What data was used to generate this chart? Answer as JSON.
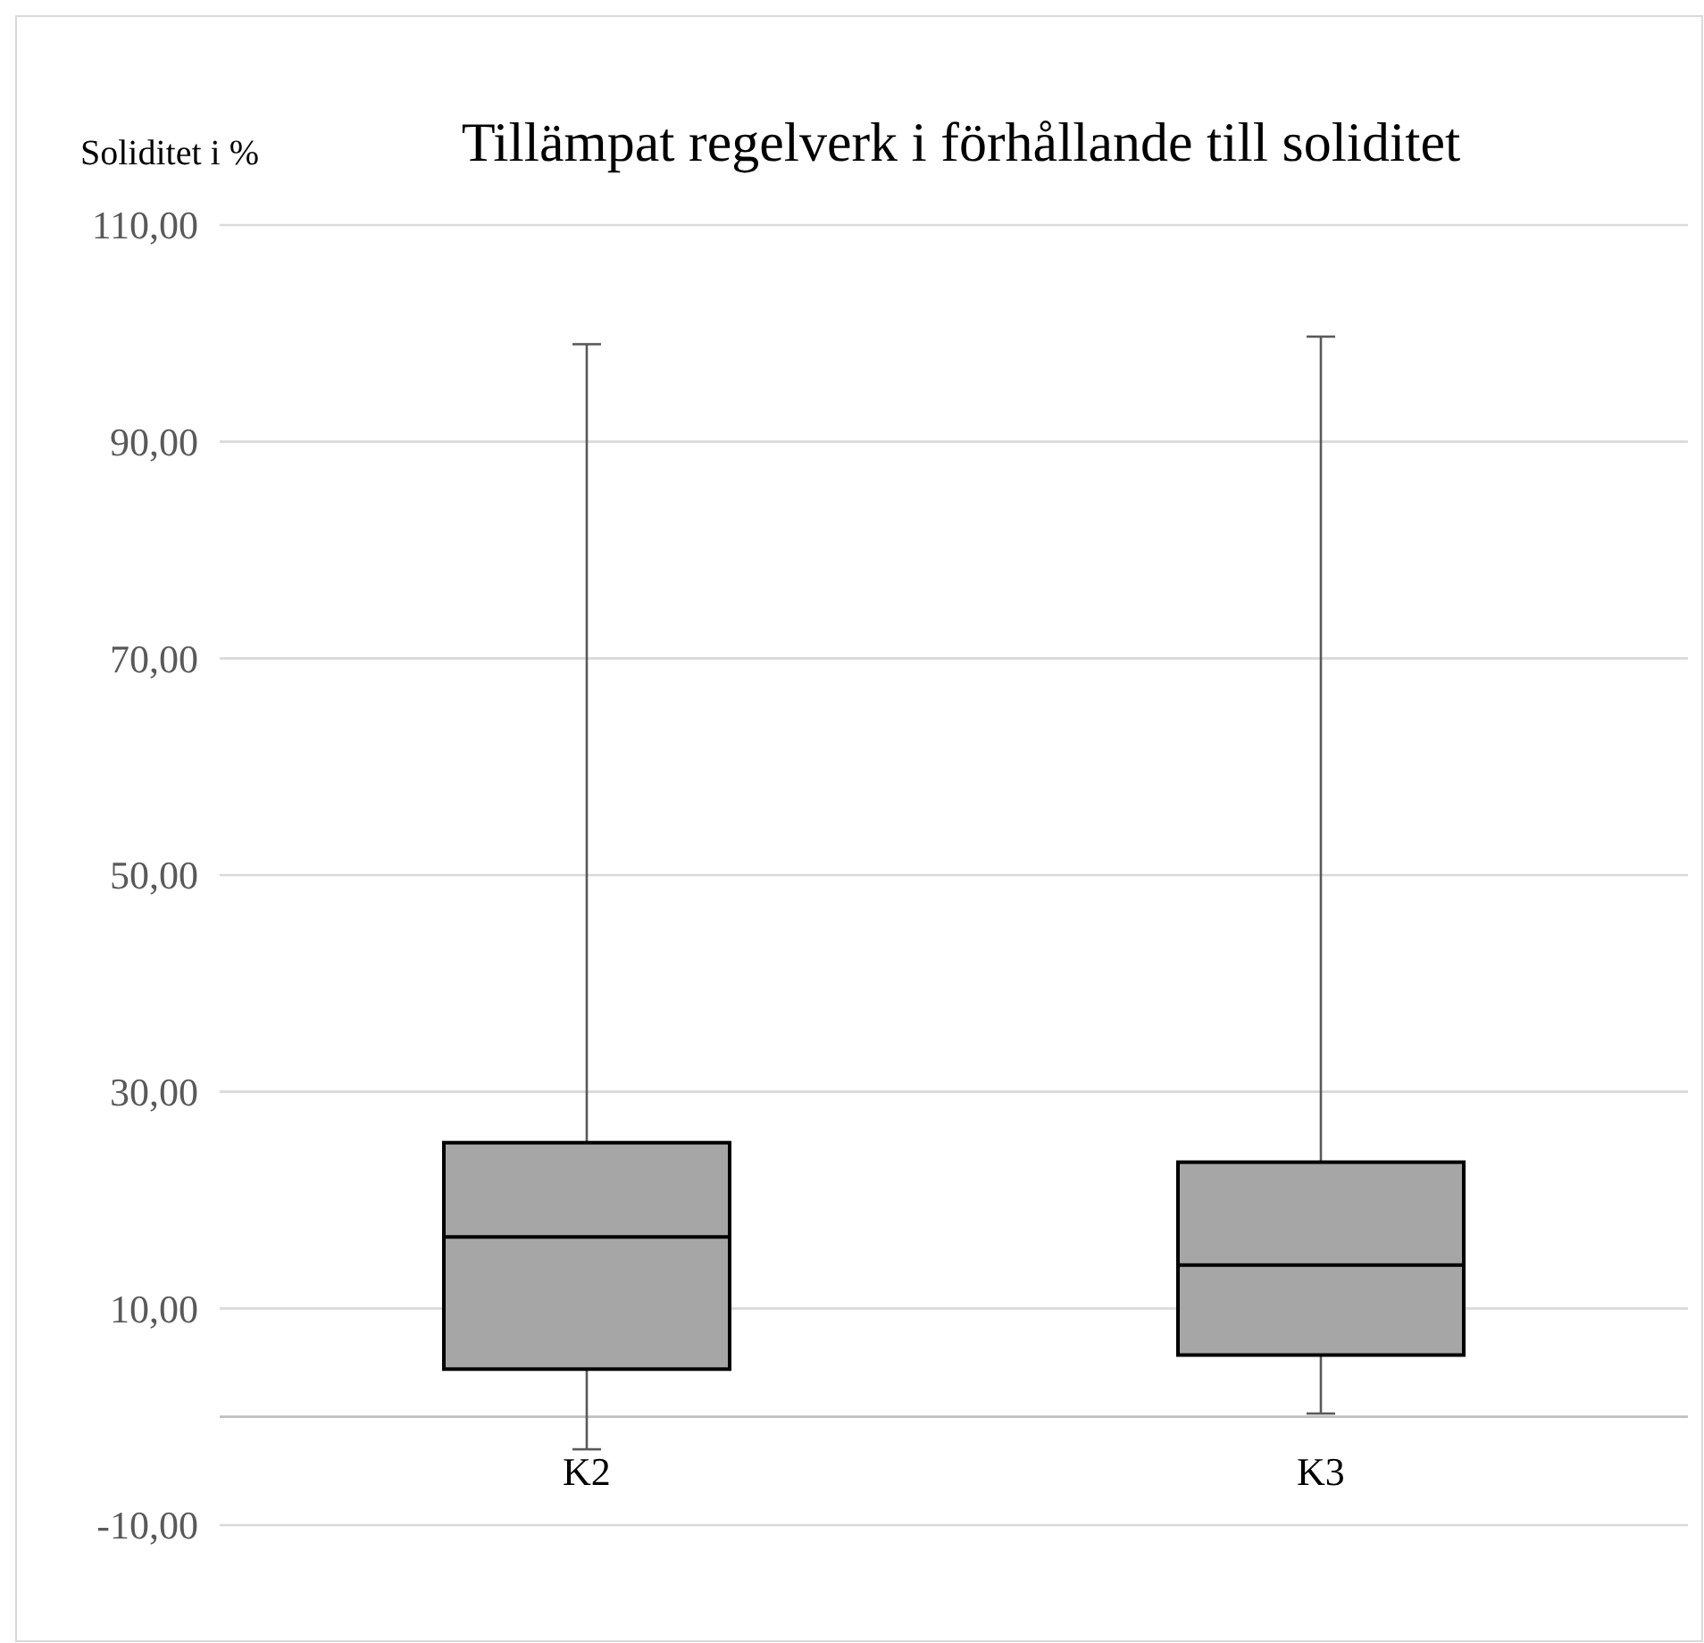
{
  "chart_data": {
    "type": "box",
    "title": "Tillämpat regelverk i förhållande till soliditet",
    "ylabel": "Soliditet i  %",
    "categories": [
      "K2",
      "K3"
    ],
    "boxes": [
      {
        "low": -3.0,
        "q1": 4.4,
        "median": 16.6,
        "q3": 25.3,
        "high": 99.0
      },
      {
        "low": 0.3,
        "q1": 5.7,
        "median": 14.0,
        "q3": 23.5,
        "high": 99.7
      }
    ],
    "color": "#a6a6a6",
    "ylim": [
      -20,
      110
    ],
    "yticks": [
      {
        "value": -10,
        "label": "-10,00"
      },
      {
        "value": 10,
        "label": "10,00"
      },
      {
        "value": 30,
        "label": "30,00"
      },
      {
        "value": 50,
        "label": "50,00"
      },
      {
        "value": 70,
        "label": "70,00"
      },
      {
        "value": 90,
        "label": "90,00"
      },
      {
        "value": 110,
        "label": "110,00"
      }
    ],
    "grid": "y"
  }
}
